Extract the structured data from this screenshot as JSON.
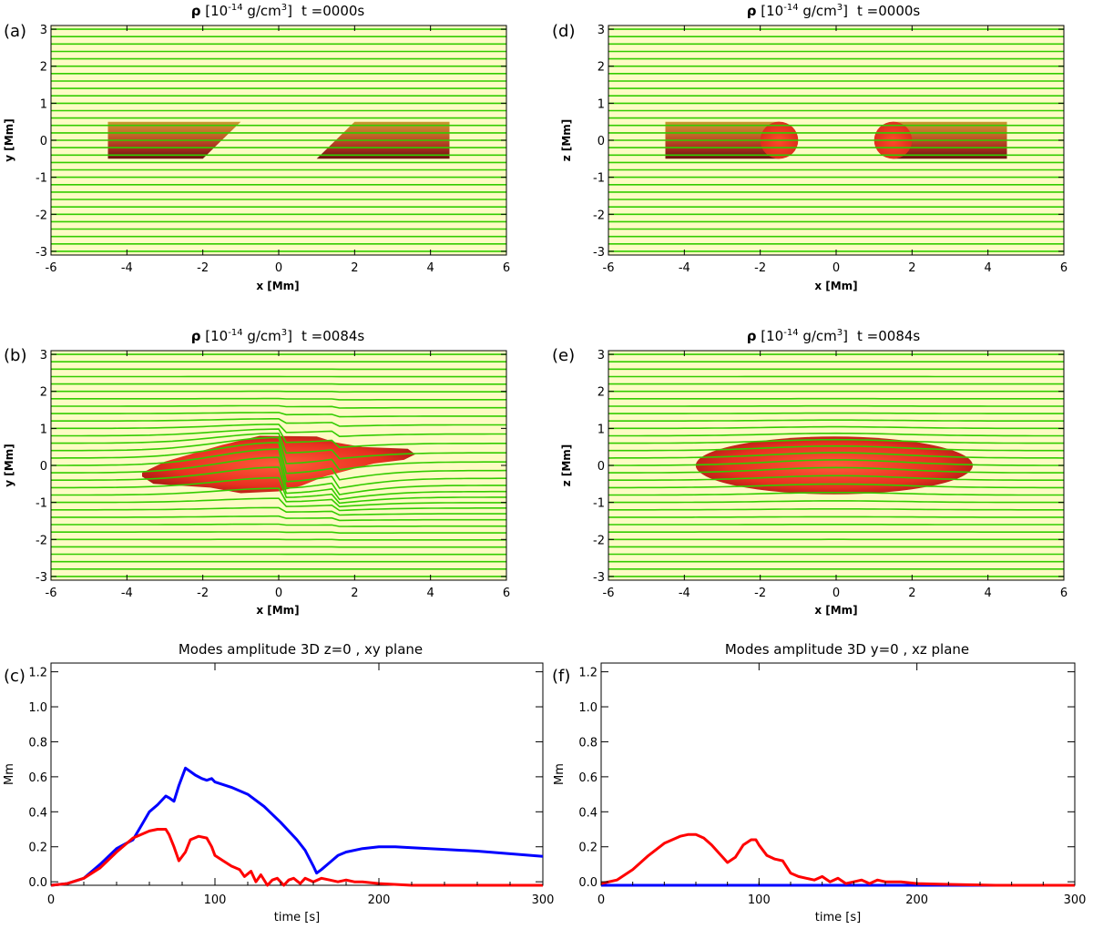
{
  "chart_data": [
    {
      "id": "a",
      "type": "heatmap",
      "panel_label": "(a)",
      "title": {
        "symbol": "ρ",
        "bracket_open": " [",
        "unit_base": "10",
        "unit_exp": "-14",
        "unit_rest": " g/cm",
        "unit_exp2": "3",
        "bracket_close": "]",
        "time": "t =0000s"
      },
      "xlabel": "x [Mm]",
      "ylabel": "y [Mm]",
      "xlim": [
        -6,
        6
      ],
      "ylim": [
        -3.1,
        3.1
      ],
      "xticks": [
        "-6",
        "-4",
        "-2",
        "0",
        "2",
        "4",
        "6"
      ],
      "yticks": [
        "-3",
        "-2",
        "-1",
        "0",
        "1",
        "2",
        "3"
      ],
      "field_lines": {
        "count": 31,
        "color": "#33cc00"
      },
      "shapes": [
        {
          "kind": "polygon",
          "name": "left-blob",
          "points": [
            [
              -4.5,
              -0.5
            ],
            [
              -2.0,
              -0.5
            ],
            [
              -1.0,
              0.5
            ],
            [
              -4.5,
              0.5
            ]
          ]
        },
        {
          "kind": "polygon",
          "name": "right-blob",
          "points": [
            [
              1.0,
              -0.5
            ],
            [
              4.5,
              -0.5
            ],
            [
              4.5,
              0.5
            ],
            [
              2.0,
              0.5
            ]
          ]
        }
      ],
      "colors": {
        "background": "#fdfbc4"
      }
    },
    {
      "id": "b",
      "type": "heatmap",
      "panel_label": "(b)",
      "title": {
        "symbol": "ρ",
        "bracket_open": " [",
        "unit_base": "10",
        "unit_exp": "-14",
        "unit_rest": " g/cm",
        "unit_exp2": "3",
        "bracket_close": "]",
        "time": "t =0084s"
      },
      "xlabel": "x [Mm]",
      "ylabel": "y [Mm]",
      "xlim": [
        -6,
        6
      ],
      "ylim": [
        -3.1,
        3.1
      ],
      "xticks": [
        "-6",
        "-4",
        "-2",
        "0",
        "2",
        "4",
        "6"
      ],
      "yticks": [
        "-3",
        "-2",
        "-1",
        "0",
        "1",
        "2",
        "3"
      ],
      "field_lines": {
        "count": 31,
        "color": "#33cc00"
      },
      "shapes": [
        {
          "kind": "polygon",
          "name": "merged-blob",
          "points": [
            [
              -3.6,
              -0.3
            ],
            [
              -3.3,
              -0.5
            ],
            [
              -1.8,
              -0.6
            ],
            [
              -1.0,
              -0.75
            ],
            [
              0.0,
              -0.7
            ],
            [
              0.6,
              -0.55
            ],
            [
              1.2,
              -0.3
            ],
            [
              2.5,
              0.05
            ],
            [
              3.3,
              0.15
            ],
            [
              3.6,
              0.3
            ],
            [
              3.4,
              0.45
            ],
            [
              2.2,
              0.5
            ],
            [
              1.5,
              0.62
            ],
            [
              1.0,
              0.78
            ],
            [
              -0.5,
              0.8
            ],
            [
              -1.5,
              0.55
            ],
            [
              -3.0,
              0.1
            ],
            [
              -3.6,
              -0.2
            ]
          ]
        }
      ],
      "colors": {
        "background": "#fdfbc4"
      }
    },
    {
      "id": "d",
      "type": "heatmap",
      "panel_label": "(d)",
      "title": {
        "symbol": "ρ",
        "bracket_open": " [",
        "unit_base": "10",
        "unit_exp": "-14",
        "unit_rest": " g/cm",
        "unit_exp2": "3",
        "bracket_close": "]",
        "time": "t =0000s"
      },
      "xlabel": "x [Mm]",
      "ylabel": "z [Mm]",
      "xlim": [
        -6,
        6
      ],
      "ylim": [
        -3.1,
        3.1
      ],
      "xticks": [
        "-6",
        "-4",
        "-2",
        "0",
        "2",
        "4",
        "6"
      ],
      "yticks": [
        "-3",
        "-2",
        "-1",
        "0",
        "1",
        "2",
        "3"
      ],
      "field_lines": {
        "count": 31,
        "color": "#33cc00"
      },
      "shapes": [
        {
          "kind": "polygon",
          "name": "left-slab",
          "points": [
            [
              -4.5,
              -0.5
            ],
            [
              -1.5,
              -0.5
            ],
            [
              -1.5,
              0.5
            ],
            [
              -4.5,
              0.5
            ]
          ]
        },
        {
          "kind": "circle",
          "name": "left-cap",
          "cx": -1.5,
          "cy": 0,
          "r": 0.5
        },
        {
          "kind": "polygon",
          "name": "right-slab",
          "points": [
            [
              1.5,
              -0.5
            ],
            [
              4.5,
              -0.5
            ],
            [
              4.5,
              0.5
            ],
            [
              1.5,
              0.5
            ]
          ]
        },
        {
          "kind": "circle",
          "name": "right-cap",
          "cx": 1.5,
          "cy": 0,
          "r": 0.5
        }
      ],
      "colors": {
        "background": "#fdfbc4"
      }
    },
    {
      "id": "e",
      "type": "heatmap",
      "panel_label": "(e)",
      "title": {
        "symbol": "ρ",
        "bracket_open": " [",
        "unit_base": "10",
        "unit_exp": "-14",
        "unit_rest": " g/cm",
        "unit_exp2": "3",
        "bracket_close": "]",
        "time": "t =0084s"
      },
      "xlabel": "x [Mm]",
      "ylabel": "z [Mm]",
      "xlim": [
        -6,
        6
      ],
      "ylim": [
        -3.1,
        3.1
      ],
      "xticks": [
        "-6",
        "-4",
        "-2",
        "0",
        "2",
        "4",
        "6"
      ],
      "yticks": [
        "-3",
        "-2",
        "-1",
        "0",
        "1",
        "2",
        "3"
      ],
      "field_lines": {
        "count": 31,
        "color": "#33cc00"
      },
      "shapes": [
        {
          "kind": "ellipse",
          "name": "merged-blob",
          "cx": -0.05,
          "cy": 0.0,
          "rx": 3.65,
          "ry": 0.78
        }
      ],
      "colors": {
        "background": "#fdfbc4"
      }
    },
    {
      "id": "c",
      "type": "line",
      "panel_label": "(c)",
      "title": "Modes amplitude 3D z=0 , xy plane",
      "xlabel": "time [s]",
      "ylabel": "Mm",
      "xlim": [
        0,
        300
      ],
      "ylim": [
        -0.02,
        1.25
      ],
      "xticks": [
        0,
        100,
        200,
        300
      ],
      "yticks": [
        0.0,
        0.2,
        0.4,
        0.6,
        0.8,
        1.0,
        1.2
      ],
      "ytick_labels": [
        "0.0",
        "0.2",
        "0.4",
        "0.6",
        "0.8",
        "1.0",
        "1.2"
      ],
      "series": [
        {
          "name": "blue",
          "color": "#0000ff",
          "x": [
            0,
            10,
            20,
            30,
            40,
            50,
            55,
            60,
            65,
            70,
            72,
            75,
            78,
            82,
            85,
            88,
            92,
            95,
            98,
            100,
            110,
            120,
            130,
            140,
            150,
            155,
            160,
            162,
            165,
            170,
            175,
            180,
            190,
            200,
            210,
            220,
            240,
            260,
            280,
            300
          ],
          "y": [
            -0.02,
            -0.01,
            0.02,
            0.1,
            0.19,
            0.24,
            0.32,
            0.4,
            0.44,
            0.49,
            0.48,
            0.46,
            0.55,
            0.65,
            0.63,
            0.61,
            0.59,
            0.58,
            0.59,
            0.57,
            0.54,
            0.5,
            0.43,
            0.34,
            0.24,
            0.18,
            0.09,
            0.05,
            0.07,
            0.11,
            0.15,
            0.17,
            0.19,
            0.2,
            0.2,
            0.195,
            0.185,
            0.175,
            0.16,
            0.145
          ]
        },
        {
          "name": "red",
          "color": "#ff0000",
          "x": [
            0,
            10,
            20,
            30,
            40,
            50,
            60,
            65,
            70,
            72,
            75,
            78,
            82,
            85,
            90,
            95,
            98,
            100,
            105,
            110,
            115,
            118,
            122,
            125,
            128,
            132,
            135,
            138,
            142,
            145,
            148,
            152,
            155,
            160,
            165,
            170,
            175,
            180,
            185,
            190,
            200,
            220,
            250,
            300
          ],
          "y": [
            -0.02,
            -0.01,
            0.02,
            0.08,
            0.17,
            0.25,
            0.29,
            0.3,
            0.3,
            0.27,
            0.2,
            0.12,
            0.17,
            0.24,
            0.26,
            0.25,
            0.2,
            0.15,
            0.12,
            0.09,
            0.07,
            0.03,
            0.06,
            0.0,
            0.04,
            -0.02,
            0.01,
            0.02,
            -0.02,
            0.01,
            0.02,
            -0.01,
            0.02,
            0.0,
            0.02,
            0.01,
            0.0,
            0.01,
            0.0,
            0.0,
            -0.01,
            -0.02,
            -0.02,
            -0.02
          ]
        }
      ]
    },
    {
      "id": "f",
      "type": "line",
      "panel_label": "(f)",
      "title": "Modes amplitude 3D y=0 , xz plane",
      "xlabel": "time [s]",
      "ylabel": "Mm",
      "xlim": [
        0,
        300
      ],
      "ylim": [
        -0.02,
        1.25
      ],
      "xticks": [
        0,
        100,
        200,
        300
      ],
      "yticks": [
        0.0,
        0.2,
        0.4,
        0.6,
        0.8,
        1.0,
        1.2
      ],
      "ytick_labels": [
        "0.0",
        "0.2",
        "0.4",
        "0.6",
        "0.8",
        "1.0",
        "1.2"
      ],
      "series": [
        {
          "name": "blue",
          "color": "#0000ff",
          "x": [
            0,
            300
          ],
          "y": [
            -0.02,
            -0.02
          ]
        },
        {
          "name": "red",
          "color": "#ff0000",
          "x": [
            0,
            10,
            20,
            30,
            40,
            50,
            55,
            60,
            65,
            70,
            75,
            80,
            85,
            90,
            95,
            98,
            100,
            105,
            110,
            115,
            120,
            125,
            130,
            135,
            140,
            145,
            150,
            155,
            160,
            165,
            170,
            175,
            180,
            190,
            200,
            220,
            250,
            300
          ],
          "y": [
            -0.01,
            0.01,
            0.07,
            0.15,
            0.22,
            0.26,
            0.27,
            0.27,
            0.25,
            0.21,
            0.16,
            0.11,
            0.14,
            0.21,
            0.24,
            0.24,
            0.21,
            0.15,
            0.13,
            0.12,
            0.05,
            0.03,
            0.02,
            0.01,
            0.03,
            0.0,
            0.02,
            -0.01,
            0.0,
            0.01,
            -0.01,
            0.01,
            0.0,
            0.0,
            -0.01,
            -0.015,
            -0.02,
            -0.02
          ]
        }
      ]
    }
  ]
}
